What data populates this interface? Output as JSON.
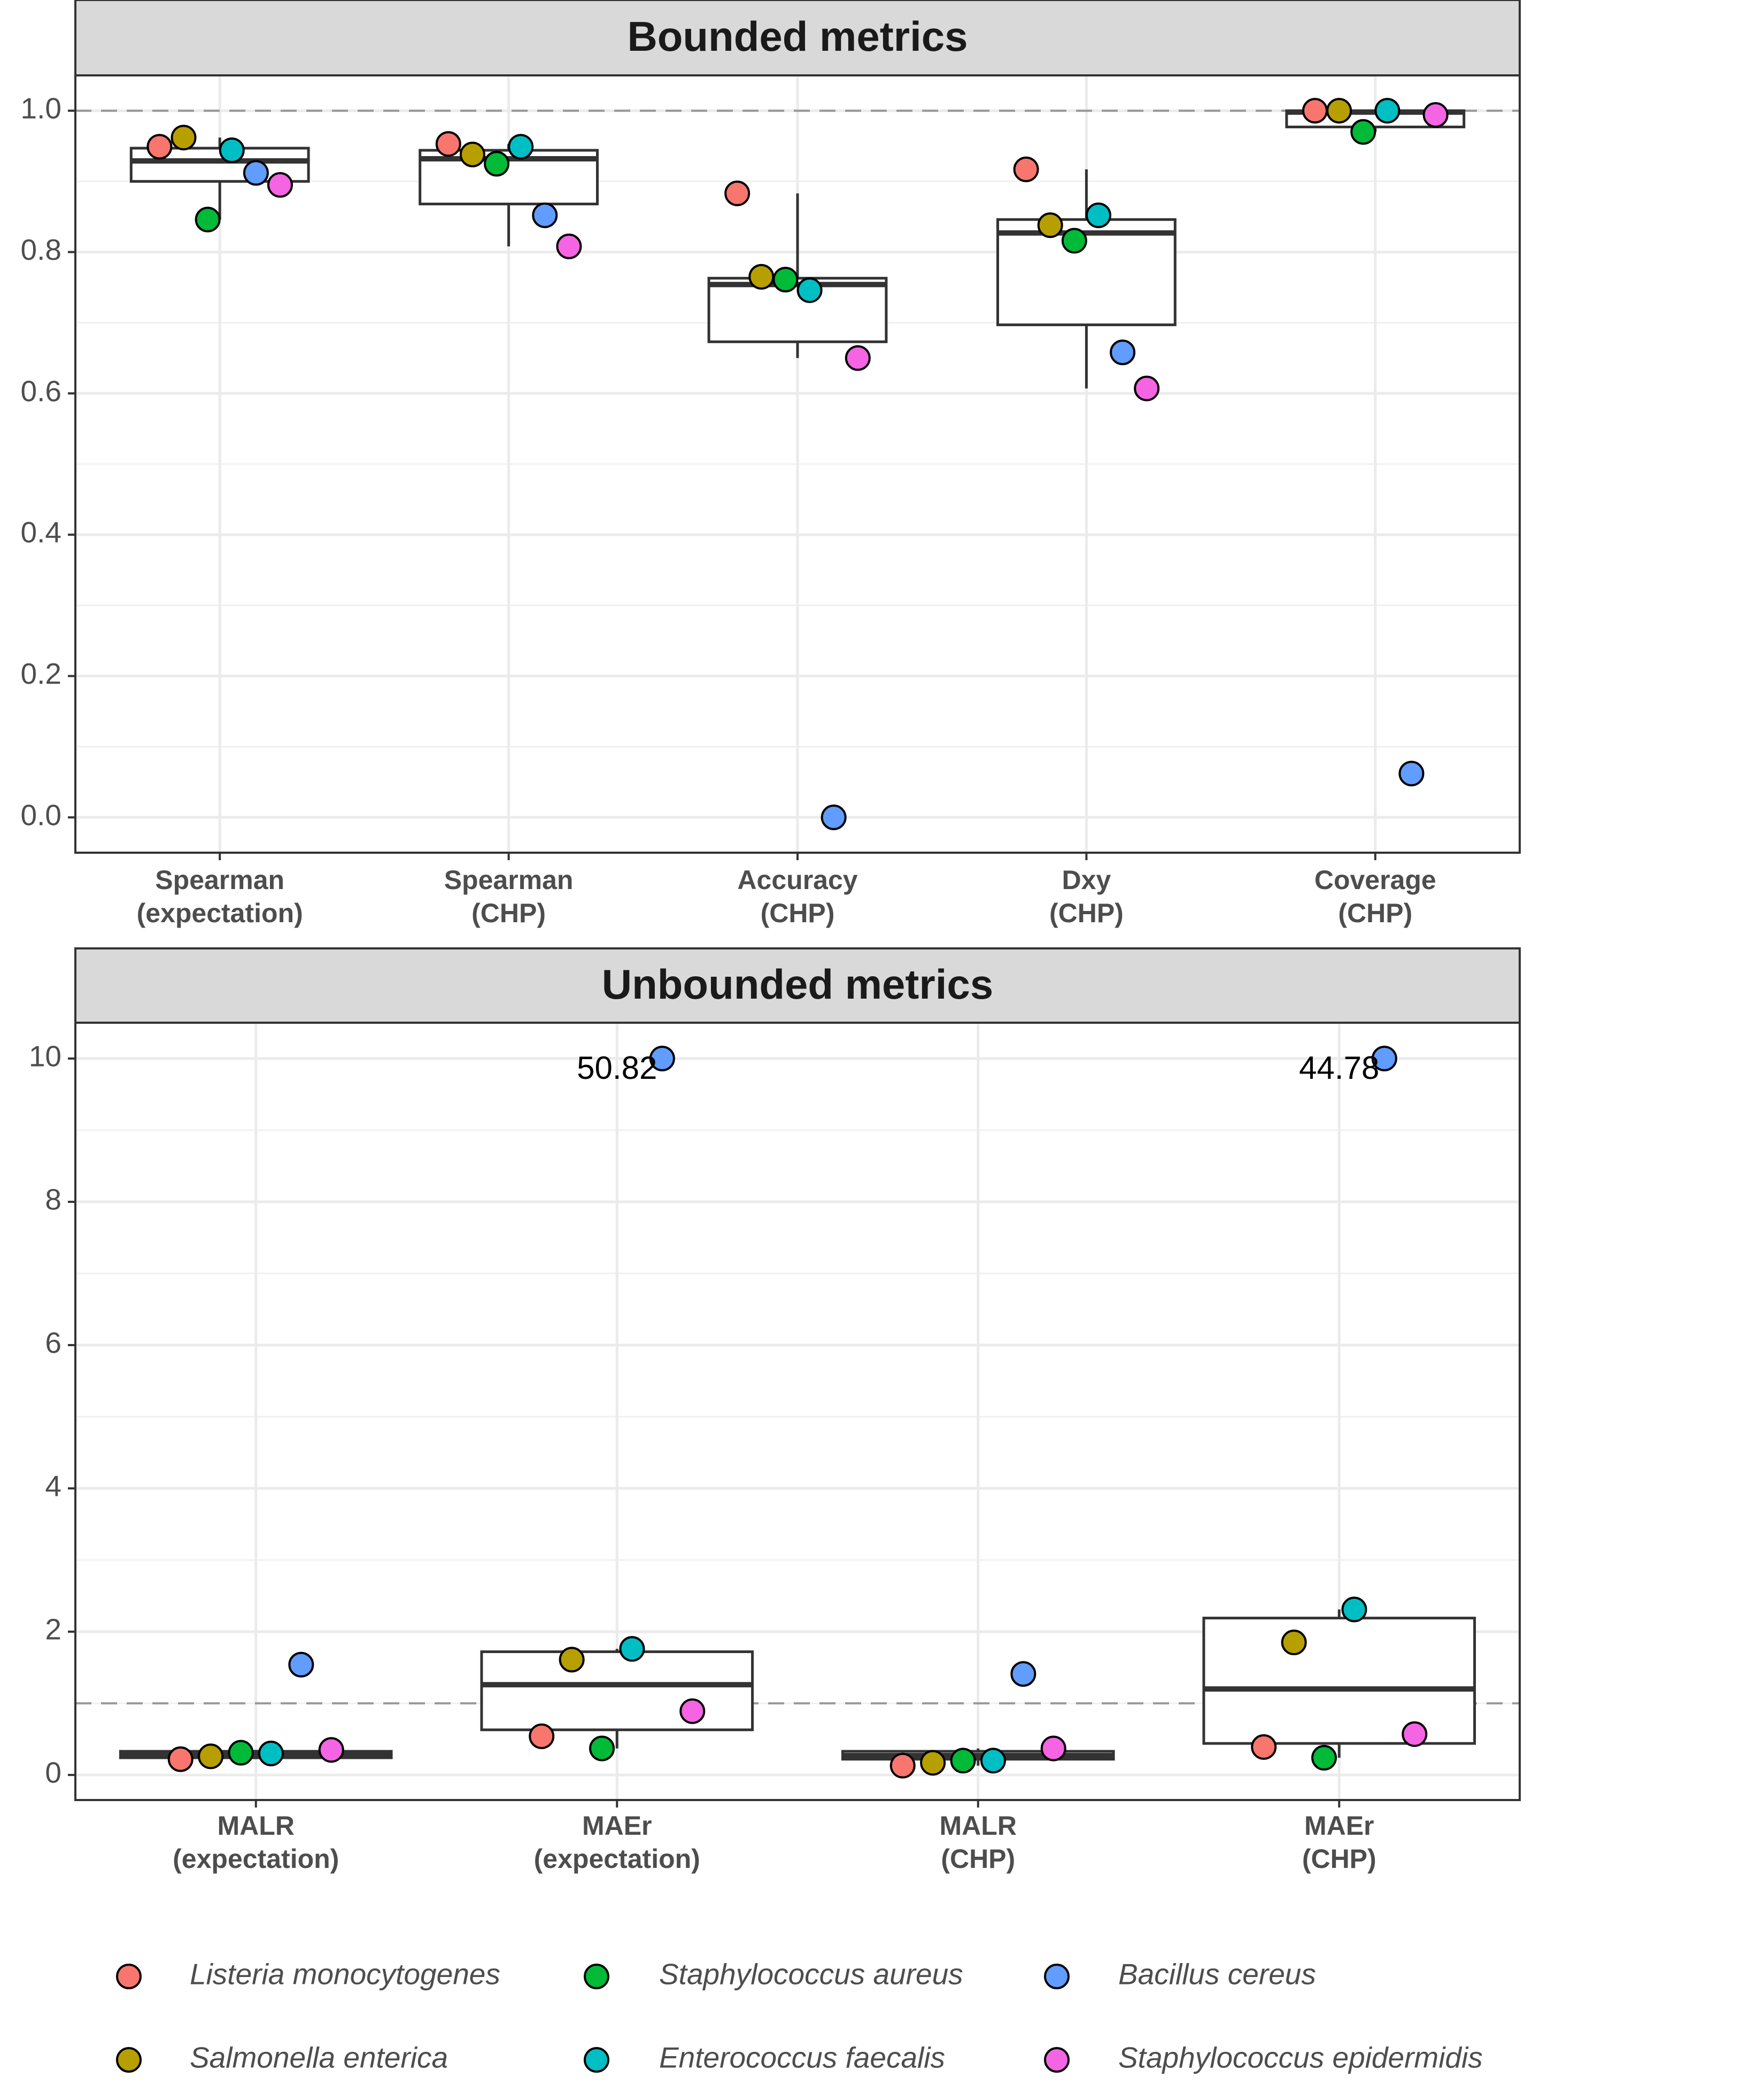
{
  "chart_data": [
    {
      "type": "box",
      "title": "Bounded metrics",
      "categories": [
        [
          "Spearman",
          "(expectation)"
        ],
        [
          "Spearman",
          "(CHP)"
        ],
        [
          "Accuracy",
          "(CHP)"
        ],
        [
          "Dxy",
          "(CHP)"
        ],
        [
          "Coverage",
          "(CHP)"
        ]
      ],
      "boxes": [
        {
          "low": 0.846,
          "q1": 0.9,
          "median": 0.929,
          "q3": 0.947,
          "high": 0.962
        },
        {
          "low": 0.808,
          "q1": 0.868,
          "median": 0.932,
          "q3": 0.944,
          "high": 0.953
        },
        {
          "low": 0.65,
          "q1": 0.673,
          "median": 0.754,
          "q3": 0.763,
          "high": 0.883
        },
        {
          "low": 0.607,
          "q1": 0.697,
          "median": 0.827,
          "q3": 0.846,
          "high": 0.917
        },
        {
          "low": 0.97,
          "q1": 0.977,
          "median": 0.998,
          "q3": 1.0,
          "high": 1.0
        }
      ],
      "series": [
        {
          "name": "Listeria monocytogenes",
          "color": "#F8766D",
          "values": [
            0.949,
            0.953,
            0.883,
            0.917,
            1.0
          ]
        },
        {
          "name": "Salmonella enterica",
          "color": "#B79F00",
          "values": [
            0.962,
            0.938,
            0.765,
            0.838,
            1.0
          ]
        },
        {
          "name": "Staphylococcus aureus",
          "color": "#00BA38",
          "values": [
            0.846,
            0.925,
            0.761,
            0.816,
            0.97
          ]
        },
        {
          "name": "Enterococcus faecalis",
          "color": "#00BFC4",
          "values": [
            0.944,
            0.949,
            0.746,
            0.852,
            1.0
          ]
        },
        {
          "name": "Bacillus cereus",
          "color": "#619CFF",
          "values": [
            0.912,
            0.852,
            0.0,
            0.658,
            0.062
          ]
        },
        {
          "name": "Staphylococcus epidermidis",
          "color": "#F564E3",
          "values": [
            0.895,
            0.808,
            0.65,
            0.607,
            0.994
          ]
        }
      ],
      "ylim": [
        -0.05,
        1.05
      ],
      "yticks": [
        {
          "value": 0,
          "label": "0.0"
        },
        0.2,
        0.4,
        0.6,
        0.8,
        {
          "value": 1,
          "label": "1.0"
        }
      ],
      "hline": 1,
      "grid": true
    },
    {
      "type": "box",
      "title": "Unbounded metrics",
      "categories": [
        [
          "MALR",
          "(expectation)"
        ],
        [
          "MAEr",
          "(expectation)"
        ],
        [
          "MALR",
          "(CHP)"
        ],
        [
          "MAEr",
          "(CHP)"
        ]
      ],
      "boxes": [
        {
          "low": 0.22,
          "q1": 0.24,
          "median": 0.29,
          "q3": 0.33,
          "high": 0.35
        },
        {
          "low": 0.37,
          "q1": 0.63,
          "median": 1.26,
          "q3": 1.72,
          "high": 1.76
        },
        {
          "low": 0.13,
          "q1": 0.22,
          "median": 0.27,
          "q3": 0.33,
          "high": 0.37
        },
        {
          "low": 0.24,
          "q1": 0.44,
          "median": 1.2,
          "q3": 2.19,
          "high": 2.31
        }
      ],
      "series": [
        {
          "name": "Listeria monocytogenes",
          "color": "#F8766D",
          "values": [
            0.22,
            0.54,
            0.13,
            0.39
          ]
        },
        {
          "name": "Salmonella enterica",
          "color": "#B79F00",
          "values": [
            0.26,
            1.61,
            0.17,
            1.85
          ]
        },
        {
          "name": "Staphylococcus aureus",
          "color": "#00BA38",
          "values": [
            0.31,
            0.37,
            0.2,
            0.24
          ]
        },
        {
          "name": "Enterococcus faecalis",
          "color": "#00BFC4",
          "values": [
            0.3,
            1.76,
            0.2,
            2.31
          ]
        },
        {
          "name": "Bacillus cereus",
          "color": "#619CFF",
          "values": [
            1.54,
            10,
            1.41,
            10
          ],
          "annotations": [
            null,
            "50.82",
            null,
            "44.78"
          ]
        },
        {
          "name": "Staphylococcus epidermidis",
          "color": "#F564E3",
          "values": [
            0.35,
            0.89,
            0.37,
            0.57
          ]
        }
      ],
      "ylim": [
        -0.35,
        10.5
      ],
      "yticks": [
        0,
        2,
        4,
        6,
        8,
        10
      ],
      "hline": 1,
      "grid": true
    }
  ]
}
